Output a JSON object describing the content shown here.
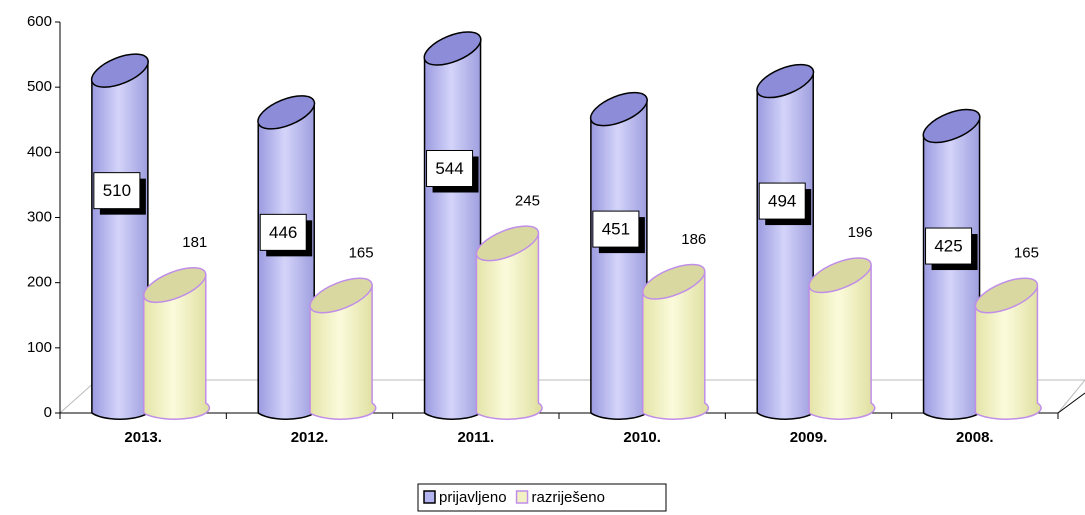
{
  "chart_data": {
    "type": "bar",
    "categories": [
      "2013.",
      "2012.",
      "2011.",
      "2010.",
      "2009.",
      "2008."
    ],
    "series": [
      {
        "name": "prijavljeno",
        "color": "#b4b4f0",
        "values": [
          510,
          446,
          544,
          451,
          494,
          425
        ]
      },
      {
        "name": "razriješeno",
        "color": "#f2f2c4",
        "values": [
          181,
          165,
          245,
          186,
          196,
          165
        ]
      }
    ],
    "ylim": [
      0,
      600
    ],
    "yticks": [
      0,
      100,
      200,
      300,
      400,
      500,
      600
    ],
    "legend": "bottom"
  }
}
